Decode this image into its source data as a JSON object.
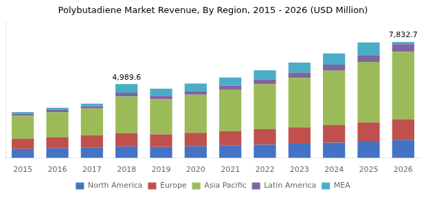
{
  "chart_data": {
    "type": "bar",
    "title": "Polybutadiene Market Revenue, By Region, 2015 - 2026 (USD Million)",
    "categories": [
      "2015",
      "2016",
      "2017",
      "2018",
      "2019",
      "2020",
      "2021",
      "2022",
      "2023",
      "2024",
      "2025",
      "2026"
    ],
    "series": [
      {
        "name": "North America",
        "color": "#4472C4",
        "values": [
          600,
          650,
          700,
          770,
          740,
          790,
          840,
          900,
          960,
          1030,
          1110,
          1210
        ]
      },
      {
        "name": "Europe",
        "color": "#C0504D",
        "values": [
          700,
          760,
          820,
          890,
          850,
          910,
          970,
          1040,
          1110,
          1190,
          1280,
          1400
        ]
      },
      {
        "name": "Asia Pacific",
        "color": "#9BBB59",
        "values": [
          1550,
          1680,
          1820,
          2490,
          2380,
          2570,
          2790,
          3050,
          3340,
          3680,
          4100,
          4560
        ]
      },
      {
        "name": "Latin America",
        "color": "#8064A2",
        "values": [
          130,
          145,
          160,
          245,
          230,
          250,
          280,
          315,
          350,
          400,
          455,
          520
        ]
      },
      {
        "name": "MEA",
        "color": "#4BACC6",
        "values": [
          120,
          155,
          175,
          595,
          480,
          510,
          555,
          615,
          680,
          760,
          855,
          143
        ]
      }
    ],
    "annotations": [
      {
        "x": "2018",
        "text": "4,989.6"
      },
      {
        "x": "2026",
        "text": "7,832.7"
      }
    ],
    "ylim": [
      0,
      9200
    ],
    "stacked": true,
    "grid": false,
    "legend": "bottom",
    "tick_labels": "x"
  }
}
